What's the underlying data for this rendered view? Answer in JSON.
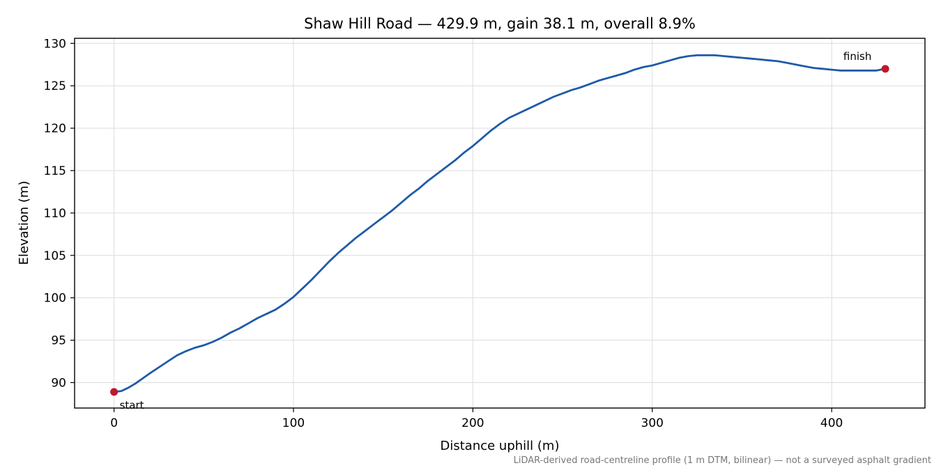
{
  "chart_data": {
    "type": "line",
    "title": "Shaw Hill Road — 429.9 m, gain 38.1 m, overall 8.9%",
    "xlabel": "Distance uphill (m)",
    "ylabel": "Elevation (m)",
    "xlim": [
      -22,
      452
    ],
    "ylim": [
      87,
      130.6
    ],
    "xticks": [
      0,
      100,
      200,
      300,
      400
    ],
    "yticks": [
      90,
      95,
      100,
      105,
      110,
      115,
      120,
      125,
      130
    ],
    "grid": true,
    "series": [
      {
        "color": "#1f5aa8",
        "x": [
          0,
          4,
          8,
          12,
          16,
          20,
          25,
          30,
          35,
          40,
          45,
          50,
          55,
          60,
          65,
          70,
          75,
          80,
          85,
          90,
          95,
          100,
          105,
          110,
          115,
          120,
          125,
          130,
          135,
          140,
          145,
          150,
          155,
          160,
          165,
          170,
          175,
          180,
          185,
          190,
          195,
          200,
          205,
          210,
          215,
          220,
          225,
          230,
          235,
          240,
          245,
          250,
          255,
          260,
          265,
          270,
          275,
          280,
          285,
          290,
          295,
          300,
          305,
          310,
          315,
          320,
          325,
          330,
          335,
          340,
          345,
          350,
          355,
          360,
          365,
          370,
          375,
          380,
          385,
          390,
          395,
          400,
          405,
          410,
          415,
          420,
          425,
          429.9
        ],
        "y": [
          88.9,
          89.0,
          89.4,
          89.9,
          90.5,
          91.1,
          91.8,
          92.5,
          93.2,
          93.7,
          94.1,
          94.4,
          94.8,
          95.3,
          95.9,
          96.4,
          97.0,
          97.6,
          98.1,
          98.6,
          99.3,
          100.1,
          101.1,
          102.1,
          103.2,
          104.3,
          105.3,
          106.2,
          107.1,
          107.9,
          108.7,
          109.5,
          110.3,
          111.2,
          112.1,
          112.9,
          113.8,
          114.6,
          115.4,
          116.2,
          117.1,
          117.9,
          118.8,
          119.7,
          120.5,
          121.2,
          121.7,
          122.2,
          122.7,
          123.2,
          123.7,
          124.1,
          124.5,
          124.8,
          125.2,
          125.6,
          125.9,
          126.2,
          126.5,
          126.9,
          127.2,
          127.4,
          127.7,
          128.0,
          128.3,
          128.5,
          128.6,
          128.6,
          128.6,
          128.5,
          128.4,
          128.3,
          128.2,
          128.1,
          128.0,
          127.9,
          127.7,
          127.5,
          127.3,
          127.1,
          127.0,
          126.9,
          126.8,
          126.8,
          126.8,
          126.8,
          126.8,
          127.0
        ]
      }
    ],
    "markers": [
      {
        "label": "start",
        "x": 0,
        "y": 88.9,
        "color": "#c0182a"
      },
      {
        "label": "finish",
        "x": 429.9,
        "y": 127.0,
        "color": "#c0182a"
      }
    ],
    "footnote": "LiDAR-derived road-centreline profile (1 m DTM, bilinear) — not a surveyed asphalt gradient"
  }
}
